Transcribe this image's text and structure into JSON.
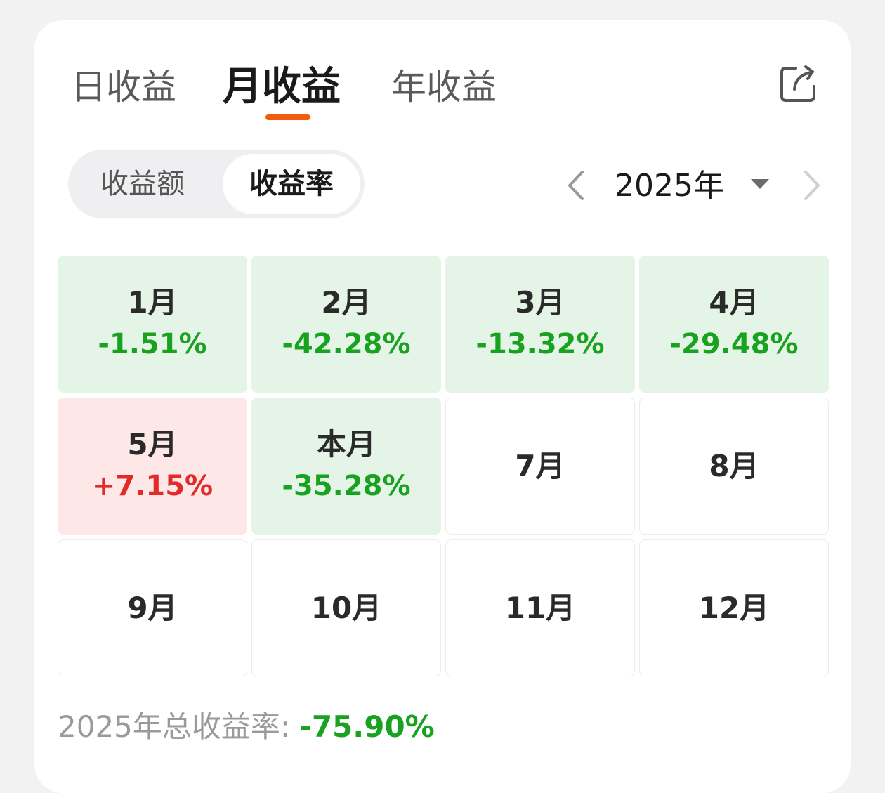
{
  "tabs": [
    {
      "label": "日收益",
      "active": false
    },
    {
      "label": "月收益",
      "active": true
    },
    {
      "label": "年收益",
      "active": false
    }
  ],
  "share_icon": "share-icon",
  "segment": {
    "options": [
      "收益额",
      "收益率"
    ],
    "selected": "收益率"
  },
  "year_selector": {
    "label": "2025年",
    "prev_icon": "chevron-left-icon",
    "next_icon": "chevron-right-icon",
    "dropdown_icon": "caret-down-icon"
  },
  "colors": {
    "accent": "#f25a0c",
    "negative": "#18a21f",
    "positive": "#e32a2a",
    "negative_bg": "#e4f4e6",
    "positive_bg": "#fde7e7"
  },
  "months": [
    {
      "label": "1月",
      "value": "-1.51%",
      "trend": "down"
    },
    {
      "label": "2月",
      "value": "-42.28%",
      "trend": "down"
    },
    {
      "label": "3月",
      "value": "-13.32%",
      "trend": "down"
    },
    {
      "label": "4月",
      "value": "-29.48%",
      "trend": "down"
    },
    {
      "label": "5月",
      "value": "+7.15%",
      "trend": "up"
    },
    {
      "label": "本月",
      "value": "-35.28%",
      "trend": "down"
    },
    {
      "label": "7月",
      "value": "",
      "trend": "none"
    },
    {
      "label": "8月",
      "value": "",
      "trend": "none"
    },
    {
      "label": "9月",
      "value": "",
      "trend": "none"
    },
    {
      "label": "10月",
      "value": "",
      "trend": "none"
    },
    {
      "label": "11月",
      "value": "",
      "trend": "none"
    },
    {
      "label": "12月",
      "value": "",
      "trend": "none"
    }
  ],
  "total": {
    "label": "2025年总收益率: ",
    "value": "-75.90%"
  }
}
